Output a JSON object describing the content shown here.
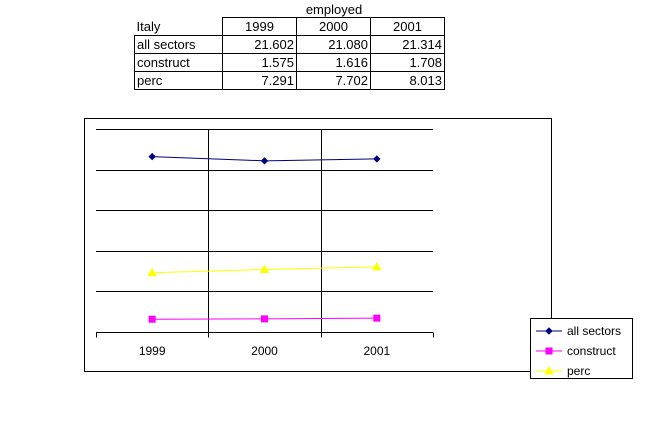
{
  "sheet": {
    "title": "employed",
    "corner_label": "Italy",
    "columns": [
      "1999",
      "2000",
      "2001"
    ],
    "rows": [
      {
        "label": "all sectors",
        "values": [
          "21.602",
          "21.080",
          "21.314"
        ]
      },
      {
        "label": "construct",
        "values": [
          "1.575",
          "1.616",
          "1.708"
        ]
      },
      {
        "label": "perc",
        "values": [
          "7.291",
          "7.702",
          "8.013"
        ]
      }
    ]
  },
  "chart_data": {
    "type": "line",
    "categories": [
      "1999",
      "2000",
      "2001"
    ],
    "ylim": [
      0,
      25
    ],
    "grid": true,
    "legend_position": "right",
    "series": [
      {
        "name": "all sectors",
        "values": [
          21.602,
          21.08,
          21.314
        ],
        "color": "#000080",
        "marker": "diamond"
      },
      {
        "name": "construct",
        "values": [
          1.575,
          1.616,
          1.708
        ],
        "color": "#ff00ff",
        "marker": "square"
      },
      {
        "name": "perc",
        "values": [
          7.291,
          7.702,
          8.013
        ],
        "color": "#ffff00",
        "marker": "triangle"
      }
    ]
  }
}
